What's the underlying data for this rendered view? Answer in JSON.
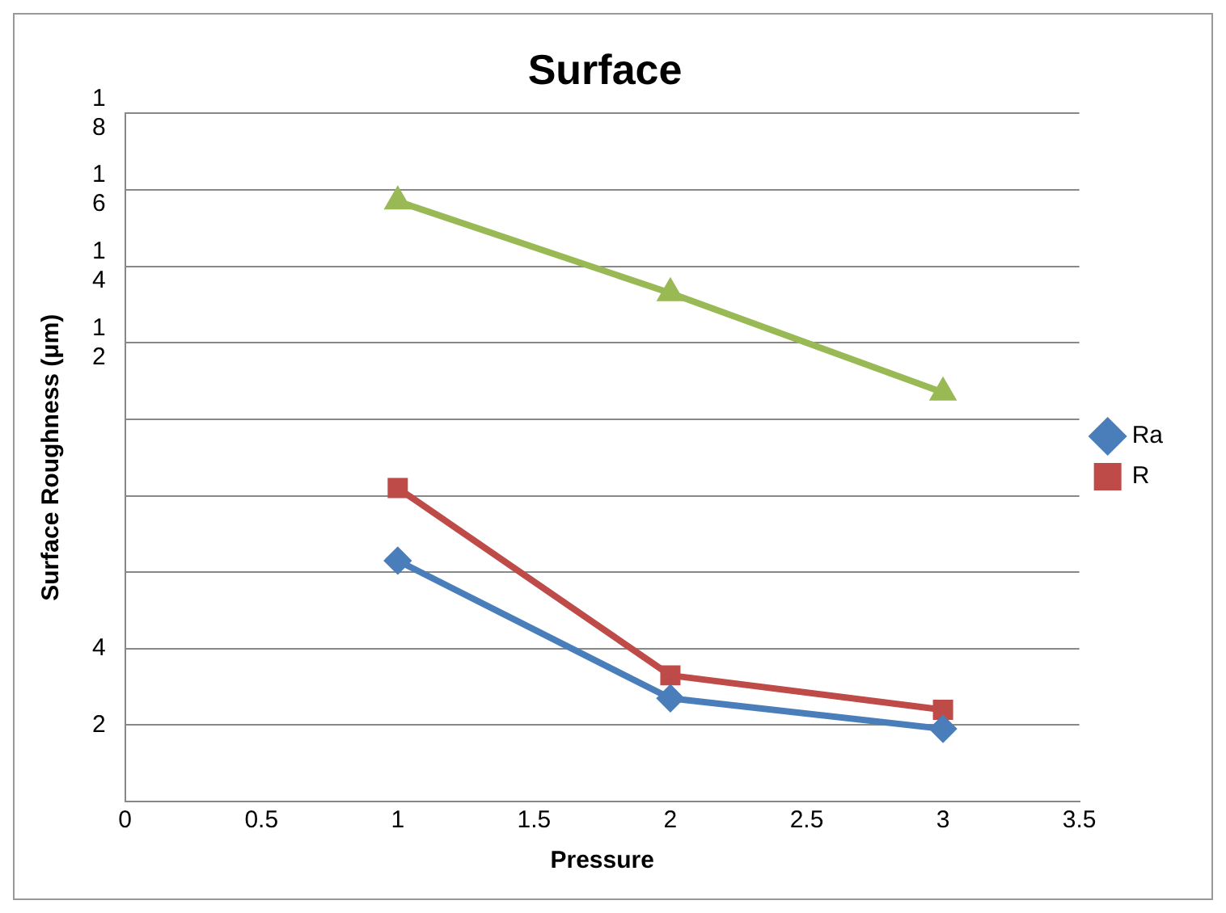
{
  "chart_data": {
    "type": "line",
    "title": "Surface",
    "xlabel": "Pressure",
    "ylabel": "Surface Roughness (μm)",
    "x": [
      1,
      2,
      3
    ],
    "series": [
      {
        "name": "Ra",
        "color": "#4a7ebb",
        "marker": "diamond",
        "values": [
          6.3,
          2.7,
          1.9
        ]
      },
      {
        "name": "R",
        "color": "#be4b48",
        "marker": "square",
        "values": [
          8.2,
          3.3,
          2.4
        ]
      },
      {
        "color": "#98b954",
        "marker": "triangle",
        "values": [
          15.7,
          13.3,
          10.7
        ]
      }
    ],
    "xlim": [
      0,
      3.5
    ],
    "xticks": [
      0,
      0.5,
      1,
      1.5,
      2,
      2.5,
      3,
      3.5
    ],
    "ylim": [
      0,
      18
    ],
    "yticks": [
      {
        "value": 0,
        "label": null
      },
      {
        "value": 2,
        "label": "2"
      },
      {
        "value": 4,
        "label": "4"
      },
      {
        "value": 6,
        "label": null
      },
      {
        "value": 8,
        "label": null
      },
      {
        "value": 10,
        "label": null
      },
      {
        "value": 12,
        "label": "12"
      },
      {
        "value": 14,
        "label": "14"
      },
      {
        "value": 16,
        "label": "16"
      },
      {
        "value": 18,
        "label": "18"
      }
    ],
    "grid": "y",
    "legend": "right",
    "line_style": "solid"
  }
}
